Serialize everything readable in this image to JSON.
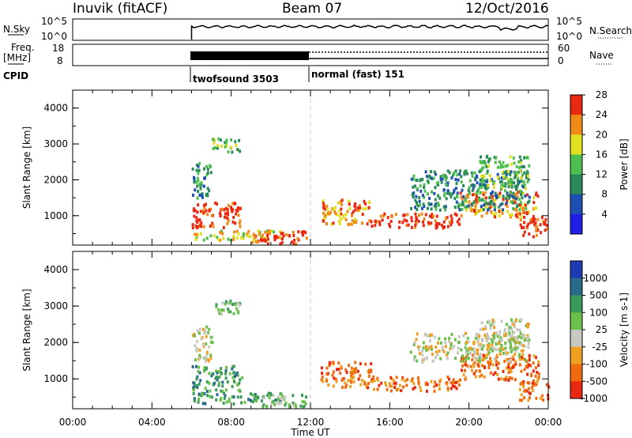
{
  "header": {
    "station": "Inuvik (fitACF)",
    "beam": "Beam 07",
    "date": "12/Oct/2016"
  },
  "panels": {
    "nsky": {
      "label": "N.Sky",
      "ticks": [
        "10^5",
        "10^0"
      ],
      "right_label": "N.Search",
      "right_ticks": [
        "10^5",
        "10^0"
      ]
    },
    "freq": {
      "label_line1": "Freq.",
      "label_line2": "[MHz]",
      "ticks": [
        "18",
        "8"
      ],
      "right_label": "Nave",
      "right_ticks": [
        "60",
        "0"
      ]
    },
    "cpid": {
      "label": "CPID",
      "modes": [
        "twofsound 3503",
        "normal (fast) 151"
      ]
    }
  },
  "chart_data": [
    {
      "type": "heatmap",
      "name": "power",
      "ylabel": "Slant Range [km]",
      "yticks": [
        1000,
        2000,
        3000,
        4000
      ],
      "ylim": [
        180,
        4500
      ],
      "xticks": [
        "00:00",
        "04:00",
        "08:00",
        "12:00",
        "16:00",
        "20:00",
        "00:00"
      ],
      "xlim_hours": [
        0,
        24
      ],
      "colorbar": {
        "label": "Power [dB]",
        "ticks": [
          "4",
          "8",
          "12",
          "16",
          "20",
          "24",
          "28"
        ],
        "colors": [
          "#1e1ee6",
          "#1e50b4",
          "#2a8a5a",
          "#4cbf50",
          "#e0e020",
          "#f08a18",
          "#e82810"
        ]
      },
      "echo_regions": [
        {
          "t0": 6.0,
          "t1": 8.5,
          "r0": 700,
          "r1": 1400,
          "level": 6
        },
        {
          "t0": 6.0,
          "t1": 10.5,
          "r0": 350,
          "r1": 650,
          "level": 4
        },
        {
          "t0": 9.0,
          "t1": 11.8,
          "r0": 250,
          "r1": 600,
          "level": 6
        },
        {
          "t0": 12.5,
          "t1": 15.0,
          "r0": 800,
          "r1": 1500,
          "level": 5
        },
        {
          "t0": 15.0,
          "t1": 19.5,
          "r0": 700,
          "r1": 1100,
          "level": 6
        },
        {
          "t0": 19.5,
          "t1": 23.5,
          "r0": 1000,
          "r1": 1700,
          "level": 5
        },
        {
          "t0": 22.5,
          "t1": 24.0,
          "r0": 450,
          "r1": 1000,
          "level": 6
        },
        {
          "t0": 17.0,
          "t1": 23.0,
          "r0": 1200,
          "r1": 2300,
          "level": 2
        },
        {
          "t0": 20.5,
          "t1": 23.0,
          "r0": 1800,
          "r1": 2700,
          "level": 3
        },
        {
          "t0": 6.0,
          "t1": 7.0,
          "r0": 1500,
          "r1": 2500,
          "level": 2
        },
        {
          "t0": 7.0,
          "t1": 8.5,
          "r0": 2800,
          "r1": 3200,
          "level": 3
        }
      ]
    },
    {
      "type": "heatmap",
      "name": "velocity",
      "ylabel": "Slant Range [km]",
      "yticks": [
        1000,
        2000,
        3000,
        4000
      ],
      "ylim": [
        180,
        4500
      ],
      "xticks": [
        "00:00",
        "04:00",
        "08:00",
        "12:00",
        "16:00",
        "20:00",
        "00:00"
      ],
      "xlabel": "Time UT",
      "xlim_hours": [
        0,
        24
      ],
      "colorbar": {
        "label": "Velocity [m s-1]",
        "ticks": [
          "1000",
          "500",
          "100",
          "25",
          "-25",
          "-100",
          "-500",
          "-1000"
        ],
        "colors": [
          "#1e3cb4",
          "#2a6a8a",
          "#3a9a5a",
          "#6ac04a",
          "#c8c8c0",
          "#f0a020",
          "#f06a10",
          "#e82810"
        ]
      },
      "echo_regions": [
        {
          "t0": 6.0,
          "t1": 8.5,
          "r0": 700,
          "r1": 1400,
          "level": 2
        },
        {
          "t0": 6.0,
          "t1": 10.5,
          "r0": 350,
          "r1": 650,
          "level": 2
        },
        {
          "t0": 9.0,
          "t1": 11.8,
          "r0": 250,
          "r1": 600,
          "level": 3
        },
        {
          "t0": 12.5,
          "t1": 15.0,
          "r0": 800,
          "r1": 1500,
          "level": 6
        },
        {
          "t0": 15.0,
          "t1": 19.5,
          "r0": 700,
          "r1": 1100,
          "level": 6
        },
        {
          "t0": 19.5,
          "t1": 23.5,
          "r0": 1000,
          "r1": 1700,
          "level": 6
        },
        {
          "t0": 22.5,
          "t1": 24.0,
          "r0": 450,
          "r1": 1000,
          "level": 6
        },
        {
          "t0": 17.0,
          "t1": 23.0,
          "r0": 1500,
          "r1": 2300,
          "level": 4
        },
        {
          "t0": 20.5,
          "t1": 23.0,
          "r0": 1800,
          "r1": 2700,
          "level": 4
        },
        {
          "t0": 6.0,
          "t1": 7.0,
          "r0": 1500,
          "r1": 2500,
          "level": 4
        },
        {
          "t0": 7.0,
          "t1": 8.5,
          "r0": 2800,
          "r1": 3200,
          "level": 3
        }
      ]
    }
  ]
}
